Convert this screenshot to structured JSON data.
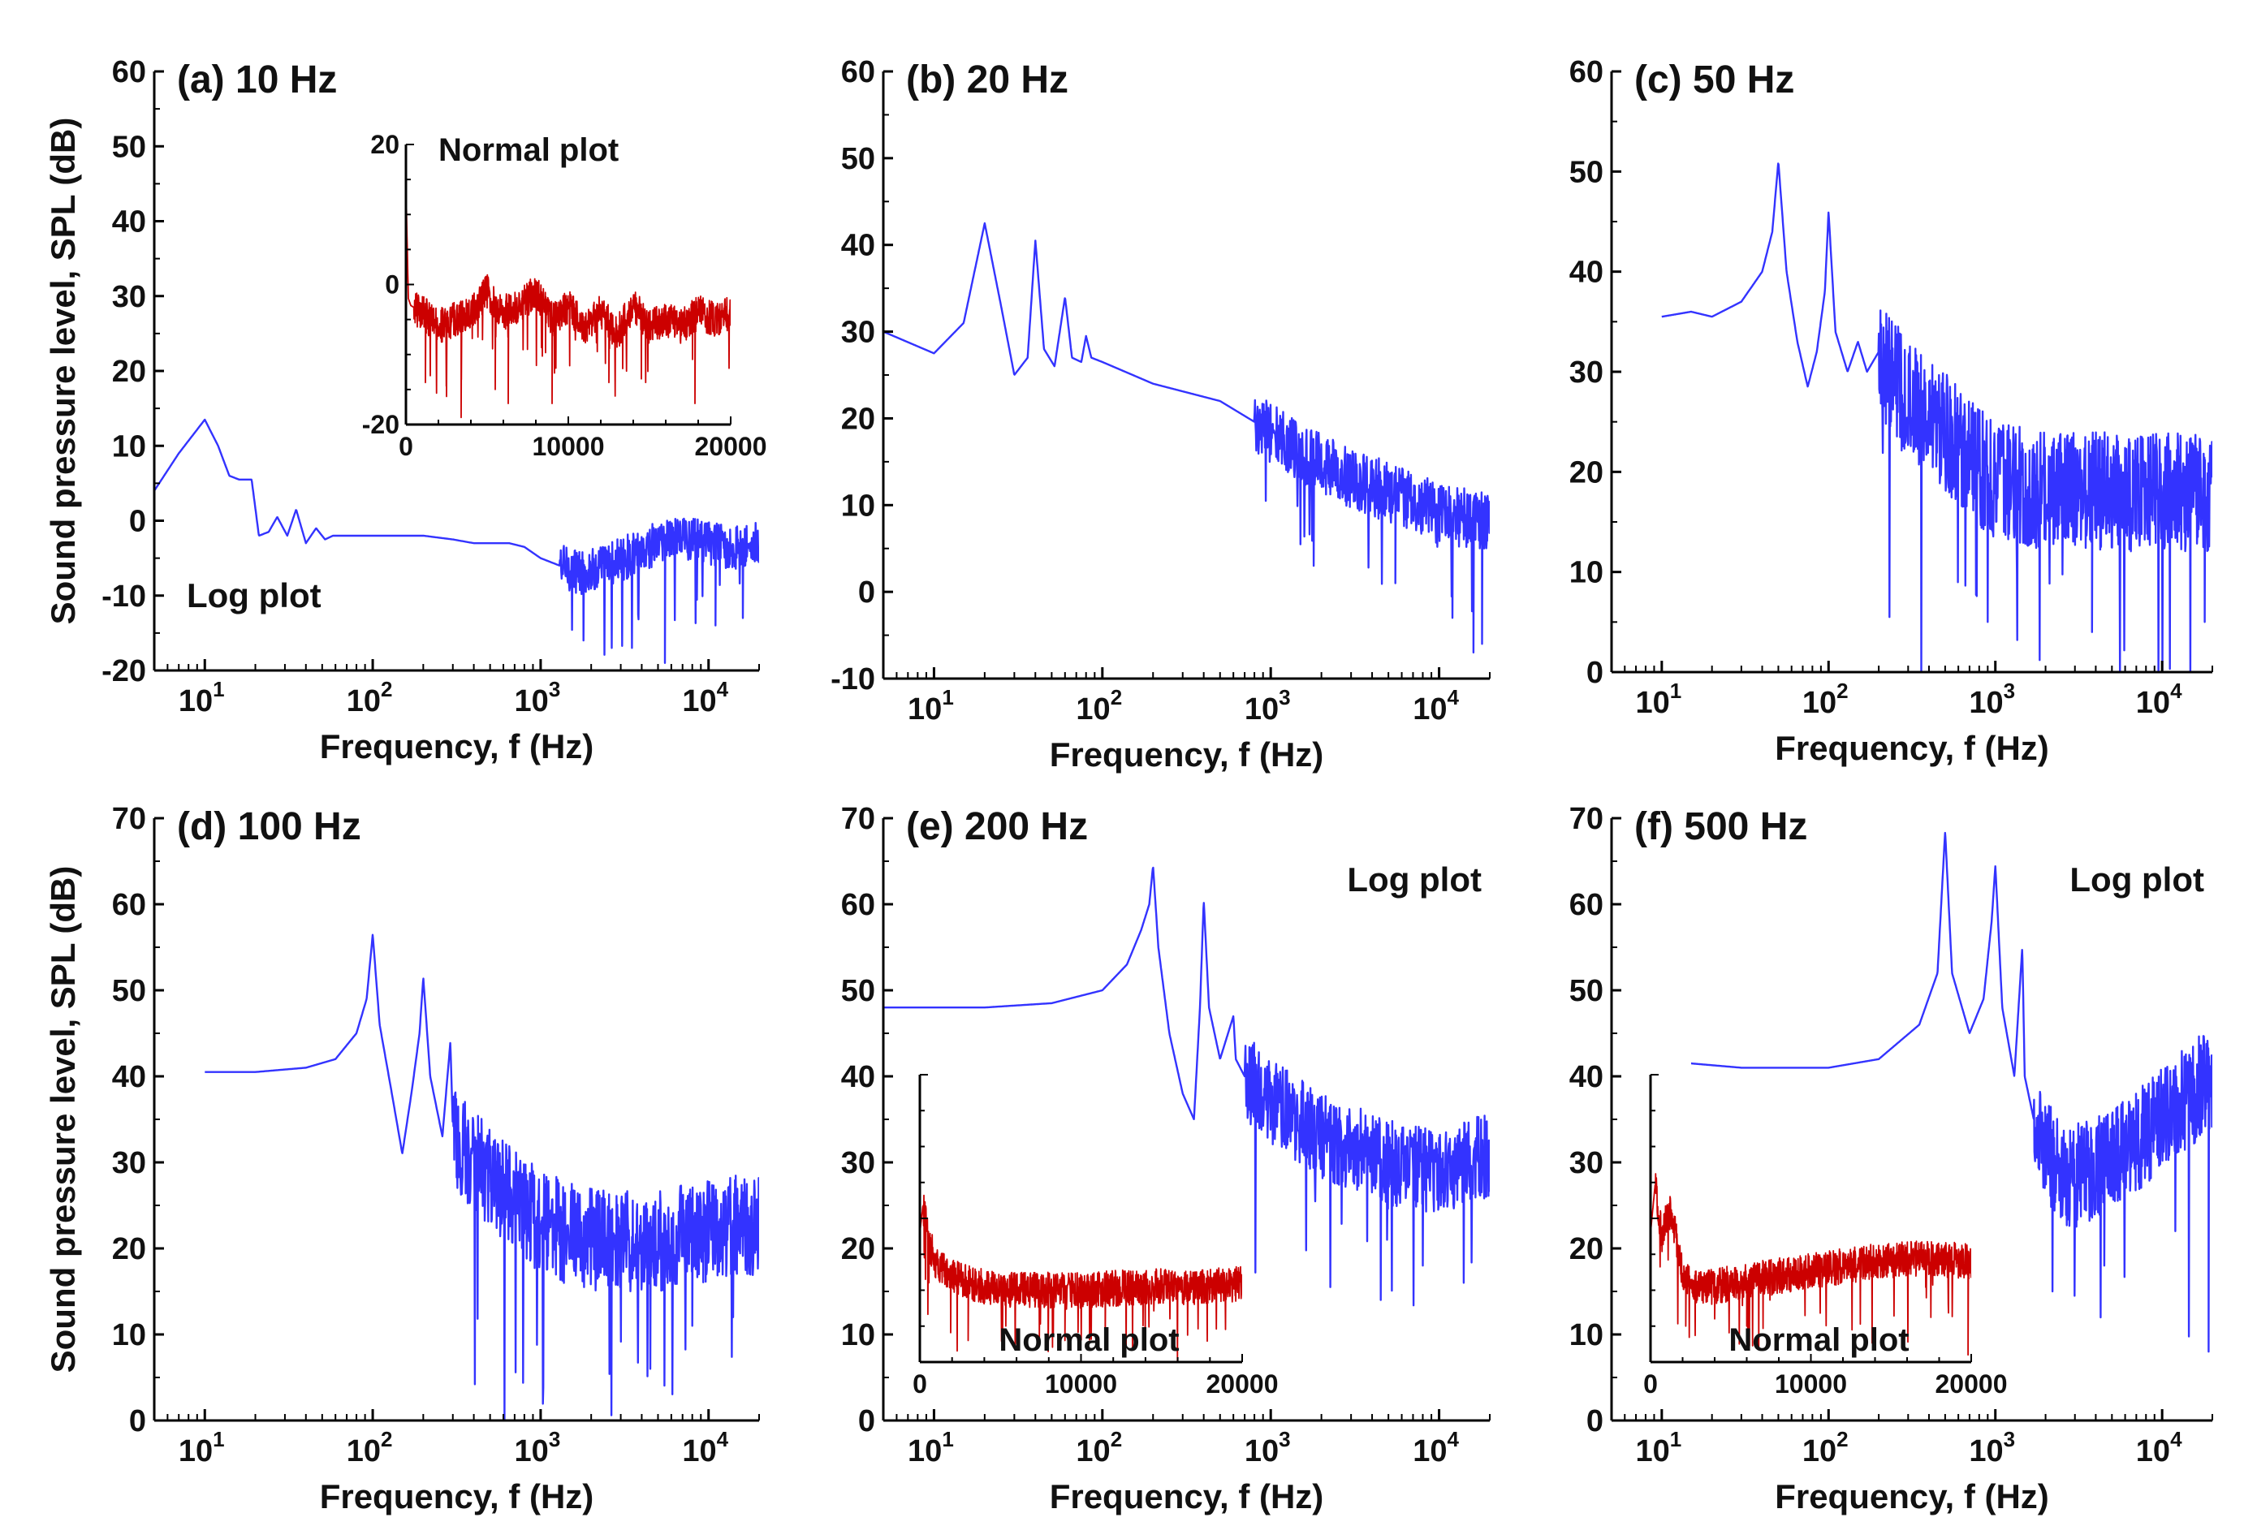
{
  "figure": {
    "ylabel_shared": "Sound pressure level, SPL (dB)",
    "colors": {
      "log_series": "#3333ff",
      "normal_series": "#cc0000"
    }
  },
  "chart_data": [
    {
      "id": "a",
      "type": "line",
      "title": "(a) 10 Hz",
      "xlabel": "Frequency, f (Hz)",
      "ylabel": "Sound pressure level, SPL (dB)",
      "xscale": "log",
      "xlim": [
        5,
        20000
      ],
      "ylim": [
        -20,
        60
      ],
      "yticks": [
        -20,
        -10,
        0,
        10,
        20,
        30,
        40,
        50,
        60
      ],
      "xtick_labels": [
        "10",
        "10",
        "10",
        "10"
      ],
      "xtick_exponents": [
        "1",
        "2",
        "3",
        "4"
      ],
      "annotations": [
        "Log plot"
      ],
      "series": [
        {
          "name": "Log plot",
          "color": "#3333ff",
          "x": [
            5,
            7,
            10,
            12,
            14,
            16,
            19,
            21,
            24,
            27,
            31,
            35,
            40,
            46,
            52,
            58,
            65,
            80,
            100,
            150,
            200,
            300,
            400,
            500,
            650,
            800,
            1000,
            1300,
            1800,
            2500,
            4000,
            6000,
            8000,
            10000,
            14000,
            20000
          ],
          "y": [
            4,
            9,
            13.5,
            10,
            6,
            5.5,
            5.5,
            -2,
            -1.5,
            0.5,
            -2,
            1.5,
            -3,
            -1,
            -2.5,
            -2,
            -2,
            -2,
            -2,
            -2,
            -2,
            -2.5,
            -3,
            -3,
            -3,
            -3.5,
            -5,
            -6,
            -7,
            -6,
            -4,
            -2,
            -2.5,
            -3,
            -3.5,
            -3
          ],
          "noise": {
            "start": 1300,
            "amp": 3,
            "spikes": [
              [
                1800,
                -16
              ],
              [
                3500,
                -17
              ],
              [
                5500,
                -19
              ],
              [
                11000,
                -14
              ],
              [
                16000,
                -13
              ]
            ]
          }
        }
      ],
      "inset": {
        "annotation": "Normal plot",
        "xscale": "linear",
        "xlim": [
          0,
          20000
        ],
        "ylim": [
          -20,
          20
        ],
        "xticks": [
          0,
          10000,
          20000
        ],
        "yticks": [
          -20,
          0,
          20
        ],
        "series": [
          {
            "name": "Normal plot",
            "color": "#cc0000",
            "x": [
              0,
              150,
              300,
              1000,
              2000,
              3000,
              4000,
              5000,
              6000,
              7000,
              8000,
              9000,
              10000,
              11000,
              12000,
              13000,
              14000,
              15000,
              16000,
              17000,
              18000,
              19000,
              20000
            ],
            "y": [
              14,
              -2,
              -3,
              -4,
              -6,
              -5,
              -4,
              -1,
              -4,
              -3,
              -1,
              -5,
              -3,
              -6,
              -4,
              -7,
              -3,
              -6,
              -5,
              -6,
              -4,
              -5,
              -4
            ],
            "noise": {
              "start": 500,
              "amp": 2.5,
              "spikes": [
                [
                  1200,
                  -14
                ],
                [
                  2500,
                  -16
                ],
                [
                  3400,
                  -19
                ],
                [
                  5500,
                  -15
                ],
                [
                  6300,
                  -17
                ],
                [
                  9000,
                  -17
                ],
                [
                  12500,
                  -14
                ],
                [
                  17800,
                  -17
                ]
              ]
            }
          }
        ]
      }
    },
    {
      "id": "b",
      "type": "line",
      "title": "(b) 20 Hz",
      "xlabel": "Frequency, f (Hz)",
      "ylabel": "",
      "xscale": "log",
      "xlim": [
        5,
        20000
      ],
      "ylim": [
        -10,
        60
      ],
      "yticks": [
        -10,
        0,
        10,
        20,
        30,
        40,
        50,
        60
      ],
      "xtick_labels": [
        "10",
        "10",
        "10",
        "10"
      ],
      "xtick_exponents": [
        "1",
        "2",
        "3",
        "4"
      ],
      "annotations": [],
      "series": [
        {
          "name": "Log plot",
          "color": "#3333ff",
          "x": [
            5,
            10,
            15,
            20,
            25,
            30,
            36,
            40,
            45,
            52,
            60,
            66,
            75,
            80,
            86,
            100,
            200,
            500,
            900,
            1500,
            3000,
            6000,
            10000,
            20000
          ],
          "y": [
            30,
            27.5,
            31,
            42.5,
            33,
            25,
            27,
            40.5,
            28,
            26,
            34,
            27,
            26.5,
            29.5,
            27,
            26.5,
            24,
            22,
            19,
            16,
            13,
            11,
            9,
            8
          ],
          "noise": {
            "start": 800,
            "amp": 3.5,
            "spikes": [
              [
                1800,
                3
              ],
              [
                5500,
                1
              ],
              [
                12000,
                -3
              ],
              [
                16000,
                -7
              ],
              [
                18000,
                -6
              ]
            ]
          }
        }
      ]
    },
    {
      "id": "c",
      "type": "line",
      "title": "(c) 50 Hz",
      "xlabel": "Frequency, f (Hz)",
      "ylabel": "",
      "xscale": "log",
      "xlim": [
        5,
        20000
      ],
      "ylim": [
        0,
        60
      ],
      "yticks": [
        0,
        10,
        20,
        30,
        40,
        50,
        60
      ],
      "xtick_labels": [
        "10",
        "10",
        "10",
        "10"
      ],
      "xtick_exponents": [
        "1",
        "2",
        "3",
        "4"
      ],
      "annotations": [],
      "series": [
        {
          "name": "Log plot",
          "color": "#3333ff",
          "x": [
            10,
            15,
            20,
            30,
            40,
            46,
            50,
            56,
            65,
            75,
            85,
            95,
            100,
            110,
            130,
            150,
            170,
            200,
            300,
            500,
            1000,
            2000,
            5000,
            10000,
            20000
          ],
          "y": [
            35.5,
            36,
            35.5,
            37,
            40,
            44,
            51,
            40,
            33,
            28.5,
            32,
            38,
            46,
            34,
            30,
            33,
            30,
            32,
            27,
            24,
            19,
            18,
            18,
            18,
            18
          ],
          "noise": {
            "start": 200,
            "amp": 6,
            "spikes": [
              [
                900,
                5
              ],
              [
                3800,
                4
              ],
              [
                9500,
                0
              ],
              [
                18000,
                5
              ]
            ]
          }
        }
      ]
    },
    {
      "id": "d",
      "type": "line",
      "title": "(d) 100 Hz",
      "xlabel": "Frequency, f (Hz)",
      "ylabel": "Sound pressure level, SPL (dB)",
      "xscale": "log",
      "xlim": [
        5,
        20000
      ],
      "ylim": [
        0,
        70
      ],
      "yticks": [
        0,
        10,
        20,
        30,
        40,
        50,
        60,
        70
      ],
      "xtick_labels": [
        "10",
        "10",
        "10",
        "10"
      ],
      "xtick_exponents": [
        "1",
        "2",
        "3",
        "4"
      ],
      "annotations": [],
      "series": [
        {
          "name": "Log plot",
          "color": "#3333ff",
          "x": [
            10,
            20,
            40,
            60,
            80,
            92,
            100,
            110,
            130,
            150,
            170,
            190,
            200,
            220,
            260,
            290,
            300,
            330,
            400,
            600,
            1000,
            2000,
            5000,
            10000,
            20000
          ],
          "y": [
            40.5,
            40.5,
            41,
            42,
            45,
            49,
            56.5,
            46,
            38,
            31,
            38,
            45,
            51.5,
            40,
            33,
            44,
            34,
            32,
            30,
            27,
            23,
            21,
            21,
            22,
            23
          ],
          "noise": {
            "start": 300,
            "amp": 6,
            "spikes": [
              [
                4500,
                6
              ],
              [
                8000,
                11
              ],
              [
                14000,
                12
              ]
            ]
          }
        }
      ]
    },
    {
      "id": "e",
      "type": "line",
      "title": "(e) 200 Hz",
      "xlabel": "Frequency, f (Hz)",
      "ylabel": "",
      "xscale": "log",
      "xlim": [
        5,
        20000
      ],
      "ylim": [
        0,
        70
      ],
      "yticks": [
        0,
        10,
        20,
        30,
        40,
        50,
        60,
        70
      ],
      "xtick_labels": [
        "10",
        "10",
        "10",
        "10"
      ],
      "xtick_exponents": [
        "1",
        "2",
        "3",
        "4"
      ],
      "annotations": [
        "Log plot"
      ],
      "series": [
        {
          "name": "Log plot",
          "color": "#3333ff",
          "x": [
            5,
            20,
            50,
            100,
            140,
            170,
            190,
            200,
            215,
            250,
            300,
            350,
            380,
            400,
            430,
            500,
            600,
            620,
            700,
            1000,
            2000,
            5000,
            10000,
            20000
          ],
          "y": [
            48,
            48,
            48.5,
            50,
            53,
            57,
            60,
            64.5,
            55,
            45,
            38,
            35,
            48,
            60.5,
            48,
            42,
            47,
            42,
            40,
            37,
            33,
            30,
            29,
            31
          ],
          "noise": {
            "start": 700,
            "amp": 5,
            "spikes": [
              [
                4500,
                14
              ],
              [
                8000,
                18
              ],
              [
                14000,
                16
              ]
            ]
          }
        }
      ],
      "inset": {
        "annotation": "Normal plot",
        "xscale": "linear",
        "xlim": [
          0,
          20000
        ],
        "ylim": [
          10,
          50
        ],
        "xticks": [
          0,
          10000,
          20000
        ],
        "yticks": [],
        "series": [
          {
            "name": "Normal plot",
            "color": "#cc0000",
            "x": [
              0,
              200,
              500,
              1000,
              2000,
              3000,
              4000,
              6000,
              10000,
              14000,
              18000,
              20000
            ],
            "y": [
              28,
              32,
              27,
              24,
              22,
              21,
              20.5,
              20,
              20,
              20.5,
              20.5,
              21
            ],
            "noise": {
              "start": 200,
              "amp": 2.5,
              "spikes": [
                [
                  3000,
                  13
                ],
                [
                  9000,
                  13
                ],
                [
                  11500,
                  13
                ]
              ]
            }
          }
        ]
      }
    },
    {
      "id": "f",
      "type": "line",
      "title": "(f) 500 Hz",
      "xlabel": "Frequency, f (Hz)",
      "ylabel": "",
      "xscale": "log",
      "xlim": [
        5,
        20000
      ],
      "ylim": [
        0,
        70
      ],
      "yticks": [
        0,
        10,
        20,
        30,
        40,
        50,
        60,
        70
      ],
      "xtick_labels": [
        "10",
        "10",
        "10",
        "10"
      ],
      "xtick_exponents": [
        "1",
        "2",
        "3",
        "4"
      ],
      "annotations": [
        "Log plot"
      ],
      "series": [
        {
          "name": "Log plot",
          "color": "#3333ff",
          "x": [
            15,
            30,
            60,
            100,
            200,
            350,
            450,
            500,
            550,
            700,
            850,
            950,
            1000,
            1100,
            1300,
            1450,
            1500,
            1700,
            2500,
            5000,
            10000,
            20000
          ],
          "y": [
            41.5,
            41,
            41,
            41,
            42,
            46,
            52,
            68.5,
            52,
            45,
            49,
            58,
            64.5,
            48,
            40,
            55,
            40,
            35,
            28,
            30,
            35,
            40
          ],
          "noise": {
            "start": 1700,
            "amp": 6,
            "spikes": [
              [
                2200,
                15
              ],
              [
                4500,
                18
              ],
              [
                12000,
                22
              ],
              [
                19000,
                8
              ]
            ]
          }
        }
      ],
      "inset": {
        "annotation": "Normal plot",
        "xscale": "linear",
        "xlim": [
          0,
          20000
        ],
        "ylim": [
          10,
          50
        ],
        "xticks": [
          0,
          10000,
          20000
        ],
        "yticks": [],
        "series": [
          {
            "name": "Normal plot",
            "color": "#cc0000",
            "x": [
              0,
              300,
              700,
              1200,
              2000,
              3000,
              5000,
              8000,
              11000,
              14000,
              17000,
              20000
            ],
            "y": [
              28,
              35,
              27,
              32,
              22,
              20,
              21,
              22,
              23,
              24,
              24.5,
              24
            ],
            "noise": {
              "start": 300,
              "amp": 2.5,
              "spikes": [
                [
                  2200,
                  15
                ],
                [
                  4000,
                  16
                ],
                [
                  6000,
                  15
                ],
                [
                  19800,
                  11
                ]
              ]
            }
          }
        ]
      }
    }
  ]
}
